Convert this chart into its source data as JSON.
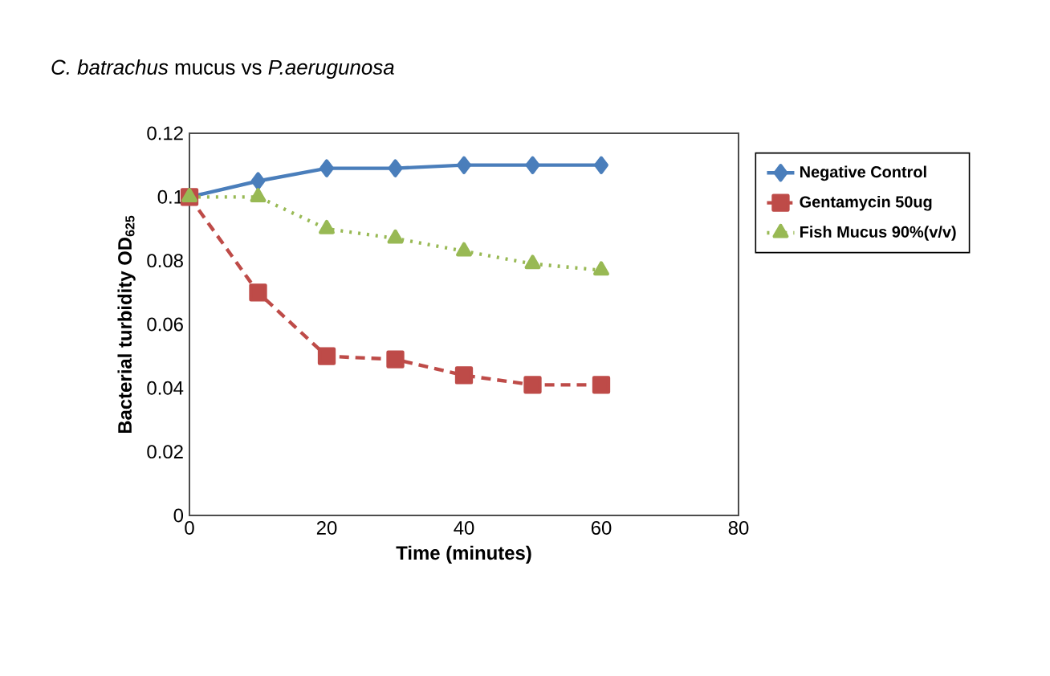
{
  "chart_data": {
    "type": "line",
    "title": "*C. batrachus* mucus vs *P.aerugunosa*",
    "xlabel": "Time (minutes)",
    "ylabel": "Bacterial turbidity OD$_{625}$",
    "x": [
      0,
      10,
      20,
      30,
      40,
      50,
      60
    ],
    "series": [
      {
        "name": "Negative Control",
        "color": "#4a7ebb",
        "marker": "diamond",
        "line_style": "solid",
        "values": [
          0.1,
          0.105,
          0.109,
          0.109,
          0.11,
          0.11,
          0.11
        ]
      },
      {
        "name": "Gentamycin 50ug",
        "color": "#be4b48",
        "marker": "square",
        "line_style": "dashed",
        "values": [
          0.1,
          0.07,
          0.05,
          0.049,
          0.044,
          0.041,
          0.041
        ]
      },
      {
        "name": "Fish Mucus 90%(v/v)",
        "color": "#98b954",
        "marker": "triangle",
        "line_style": "dotted",
        "values": [
          0.1,
          0.1,
          0.09,
          0.087,
          0.083,
          0.079,
          0.077
        ]
      }
    ],
    "xlim": [
      0,
      80
    ],
    "xticks": [
      0,
      20,
      40,
      60,
      80
    ],
    "ylim": [
      0,
      0.12
    ],
    "yticks": [
      0,
      {
        "value": 0.02,
        "label": "0.02"
      },
      {
        "value": 0.04,
        "label": "0.04"
      },
      {
        "value": 0.06,
        "label": "0.06"
      },
      {
        "value": 0.08,
        "label": "0.08"
      },
      {
        "value": 0.1,
        "label": "0.1"
      },
      {
        "value": 0.12,
        "label": "0.12"
      }
    ],
    "legend": "right",
    "grid": false
  }
}
